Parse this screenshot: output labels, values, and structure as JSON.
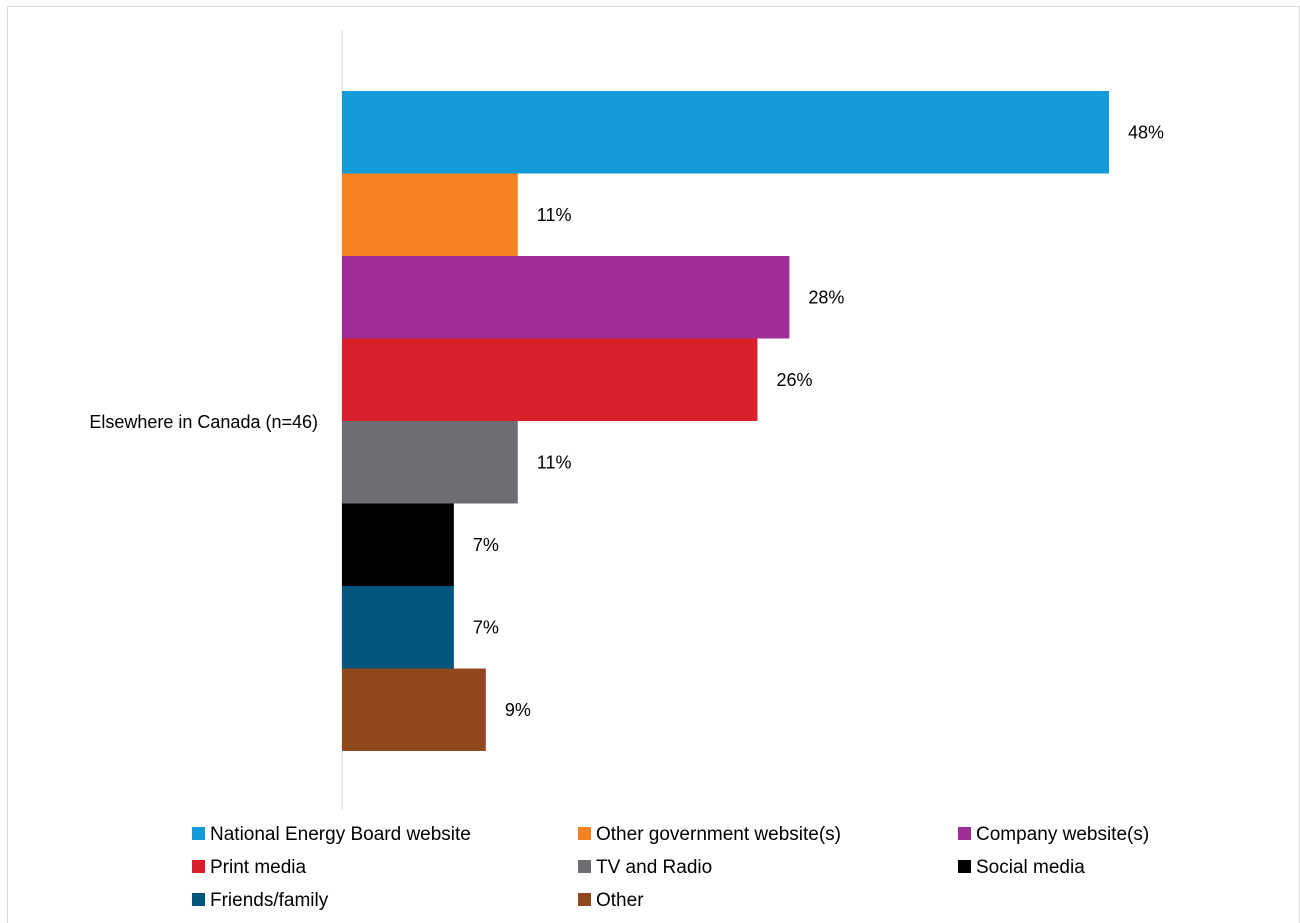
{
  "chart_data": {
    "type": "bar",
    "orientation": "horizontal",
    "categories": [
      "Elsewhere in Canada (n=46)"
    ],
    "series": [
      {
        "name": "National Energy Board website",
        "values": [
          48
        ],
        "label": "48%",
        "color": "#129BD7"
      },
      {
        "name": "Other government website(s)",
        "values": [
          11
        ],
        "label": "11%",
        "color": "#F58220"
      },
      {
        "name": "Company website(s)",
        "values": [
          28
        ],
        "label": "28%",
        "color": "#A02C95"
      },
      {
        "name": "Print media",
        "values": [
          26
        ],
        "label": "26%",
        "color": "#D81F2A"
      },
      {
        "name": "TV and Radio",
        "values": [
          11
        ],
        "label": "11%",
        "color": "#6D6E71"
      },
      {
        "name": "Social media",
        "values": [
          7
        ],
        "label": "7%",
        "color": "#000000"
      },
      {
        "name": "Friends/family",
        "values": [
          7
        ],
        "label": "7%",
        "color": "#00557C"
      },
      {
        "name": "Other",
        "values": [
          9
        ],
        "label": "9%",
        "color": "#92481F"
      }
    ],
    "unit": "%",
    "xlim": [
      0,
      50
    ],
    "grid": false,
    "legend_position": "bottom"
  }
}
